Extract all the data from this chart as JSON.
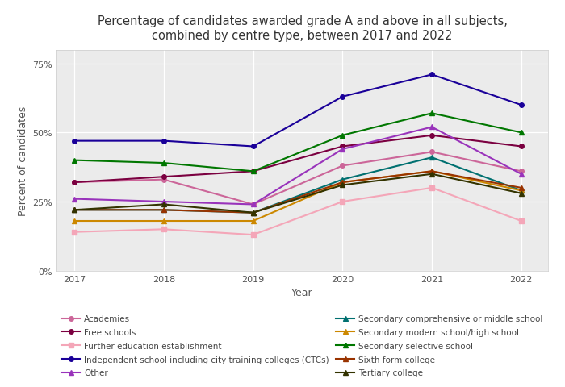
{
  "title": "Percentage of candidates awarded grade A and above in all subjects,\ncombined by centre type, between 2017 and 2022",
  "xlabel": "Year",
  "ylabel": "Percent of candidates",
  "years": [
    2017,
    2018,
    2019,
    2020,
    2021,
    2022
  ],
  "yticks": [
    0,
    25,
    50,
    75
  ],
  "ytick_labels": [
    "0%",
    "25%",
    "50%",
    "75%"
  ],
  "series": [
    {
      "label": "Academies",
      "color": "#cc6699",
      "marker": "o",
      "values": [
        32,
        33,
        24,
        38,
        43,
        36
      ]
    },
    {
      "label": "Free schools",
      "color": "#7b0040",
      "marker": "o",
      "values": [
        32,
        34,
        36,
        45,
        49,
        45
      ]
    },
    {
      "label": "Further education establishment",
      "color": "#f4a6b8",
      "marker": "s",
      "values": [
        14,
        15,
        13,
        25,
        30,
        18
      ]
    },
    {
      "label": "Independent school including city training colleges (CTCs)",
      "color": "#1a0099",
      "marker": "o",
      "values": [
        47,
        47,
        45,
        63,
        71,
        60
      ]
    },
    {
      "label": "Other",
      "color": "#9933bb",
      "marker": "^",
      "values": [
        26,
        25,
        24,
        44,
        52,
        35
      ]
    },
    {
      "label": "Secondary comprehensive or middle school",
      "color": "#007070",
      "marker": "^",
      "values": [
        22,
        22,
        21,
        33,
        41,
        29
      ]
    },
    {
      "label": "Secondary modern school/high school",
      "color": "#cc8800",
      "marker": "^",
      "values": [
        18,
        18,
        18,
        32,
        36,
        29
      ]
    },
    {
      "label": "Secondary selective school",
      "color": "#007700",
      "marker": "^",
      "values": [
        40,
        39,
        36,
        49,
        57,
        50
      ]
    },
    {
      "label": "Sixth form college",
      "color": "#993300",
      "marker": "^",
      "values": [
        22,
        22,
        21,
        32,
        36,
        30
      ]
    },
    {
      "label": "Tertiary college",
      "color": "#333300",
      "marker": "^",
      "values": [
        22,
        24,
        21,
        31,
        35,
        28
      ]
    }
  ],
  "figsize": [
    7.0,
    4.81
  ],
  "dpi": 100,
  "background_color": "#ffffff",
  "plot_bg_color": "#ebebeb",
  "title_fontsize": 10.5,
  "axis_label_fontsize": 9,
  "tick_fontsize": 8,
  "legend_fontsize": 7.5,
  "legend_order_left": [
    0,
    2,
    4,
    6,
    8
  ],
  "legend_order_right": [
    1,
    3,
    5,
    7,
    9
  ]
}
